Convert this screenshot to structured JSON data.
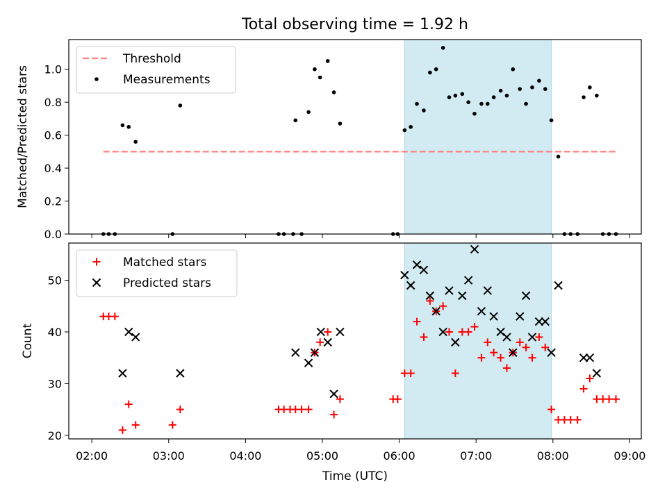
{
  "chart_data": {
    "title": "Total observing time = 1.92 h",
    "xlabel": "Time (UTC)",
    "x_ticks": [
      "02:00",
      "03:00",
      "04:00",
      "05:00",
      "06:00",
      "07:00",
      "08:00",
      "09:00"
    ],
    "x_range_hours": [
      1.7,
      9.15
    ],
    "highlight_span_hours": [
      6.07,
      7.98
    ],
    "colors": {
      "span": "#add8e6",
      "threshold": "#ff7f7f",
      "matched": "#ff0000",
      "predicted": "#000000",
      "measurement": "#000000"
    },
    "panels": [
      {
        "type": "scatter",
        "ylabel": "Matched/Predicted stars",
        "ylim": [
          0,
          1.18
        ],
        "y_ticks": [
          "0.0",
          "0.2",
          "0.4",
          "0.6",
          "0.8",
          "1.0"
        ],
        "y_tick_values": [
          0,
          0.2,
          0.4,
          0.6,
          0.8,
          1.0
        ],
        "legend": {
          "position": "upper-left",
          "entries": [
            "Threshold",
            "Measurements"
          ]
        },
        "threshold": {
          "name": "Threshold",
          "value": 0.5,
          "x": [
            2.15,
            8.82
          ]
        },
        "measurements": {
          "name": "Measurements",
          "x": [
            2.15,
            2.22,
            2.3,
            2.4,
            2.48,
            2.57,
            3.05,
            3.15,
            4.43,
            4.5,
            4.62,
            4.65,
            4.73,
            4.82,
            4.9,
            4.97,
            5.07,
            5.15,
            5.23,
            5.92,
            5.98,
            6.07,
            6.15,
            6.23,
            6.32,
            6.4,
            6.48,
            6.57,
            6.65,
            6.73,
            6.82,
            6.9,
            6.98,
            7.07,
            7.15,
            7.23,
            7.32,
            7.4,
            7.48,
            7.57,
            7.65,
            7.73,
            7.82,
            7.9,
            7.98,
            8.07,
            8.15,
            8.23,
            8.32,
            8.4,
            8.48,
            8.57,
            8.65,
            8.73,
            8.82
          ],
          "y": [
            0,
            0,
            0,
            0.66,
            0.65,
            0.56,
            0,
            0.78,
            0,
            0,
            0,
            0.69,
            0,
            0.74,
            1.0,
            0.95,
            1.05,
            0.86,
            0.67,
            0,
            0,
            0.63,
            0.65,
            0.79,
            0.75,
            0.98,
            1.0,
            1.13,
            0.83,
            0.84,
            0.85,
            0.8,
            0.73,
            0.79,
            0.79,
            0.83,
            0.87,
            0.84,
            1.0,
            0.88,
            0.79,
            0.89,
            0.93,
            0.88,
            0.69,
            0.47,
            0,
            0,
            0,
            0.83,
            0.89,
            0.84,
            0,
            0,
            0
          ]
        }
      },
      {
        "type": "scatter",
        "ylabel": "Count",
        "ylim": [
          19.3,
          57.2
        ],
        "y_ticks": [
          "20",
          "30",
          "40",
          "50"
        ],
        "y_tick_values": [
          20,
          30,
          40,
          50
        ],
        "legend": {
          "position": "upper-left",
          "entries": [
            "Matched stars",
            "Predicted stars"
          ]
        },
        "series": [
          {
            "name": "Matched stars",
            "marker": "+",
            "x": [
              2.15,
              2.22,
              2.3,
              2.4,
              2.48,
              2.57,
              3.05,
              3.15,
              4.43,
              4.5,
              4.58,
              4.65,
              4.73,
              4.82,
              4.9,
              4.97,
              5.07,
              5.15,
              5.23,
              5.92,
              5.98,
              6.07,
              6.15,
              6.23,
              6.32,
              6.4,
              6.48,
              6.57,
              6.65,
              6.73,
              6.82,
              6.9,
              6.98,
              7.07,
              7.15,
              7.23,
              7.32,
              7.4,
              7.48,
              7.57,
              7.65,
              7.73,
              7.82,
              7.9,
              7.98,
              8.07,
              8.15,
              8.23,
              8.32,
              8.4,
              8.48,
              8.57,
              8.65,
              8.73,
              8.82
            ],
            "y": [
              43,
              43,
              43,
              21,
              26,
              22,
              22,
              25,
              25,
              25,
              25,
              25,
              25,
              25,
              36,
              38,
              40,
              24,
              27,
              27,
              27,
              32,
              32,
              42,
              39,
              46,
              44,
              45,
              40,
              32,
              40,
              40,
              41,
              35,
              38,
              36,
              35,
              33,
              36,
              38,
              37,
              35,
              39,
              37,
              25,
              23,
              23,
              23,
              23,
              29,
              31,
              27,
              27,
              27,
              27
            ]
          },
          {
            "name": "Predicted stars",
            "marker": "x",
            "x": [
              2.4,
              2.48,
              2.57,
              3.15,
              4.65,
              4.82,
              4.9,
              4.98,
              5.07,
              5.15,
              5.23,
              6.07,
              6.15,
              6.23,
              6.32,
              6.4,
              6.48,
              6.57,
              6.65,
              6.73,
              6.82,
              6.9,
              6.98,
              7.07,
              7.15,
              7.23,
              7.32,
              7.4,
              7.48,
              7.57,
              7.65,
              7.73,
              7.82,
              7.9,
              7.98,
              8.07,
              8.4,
              8.48,
              8.57
            ],
            "y": [
              32,
              40,
              39,
              32,
              36,
              34,
              36,
              40,
              38,
              28,
              40,
              51,
              49,
              53,
              52,
              47,
              44,
              40,
              48,
              38,
              47,
              50,
              56,
              44,
              48,
              43,
              40,
              39,
              36,
              43,
              47,
              39,
              42,
              42,
              36,
              49,
              35,
              35,
              32
            ]
          }
        ]
      }
    ]
  }
}
